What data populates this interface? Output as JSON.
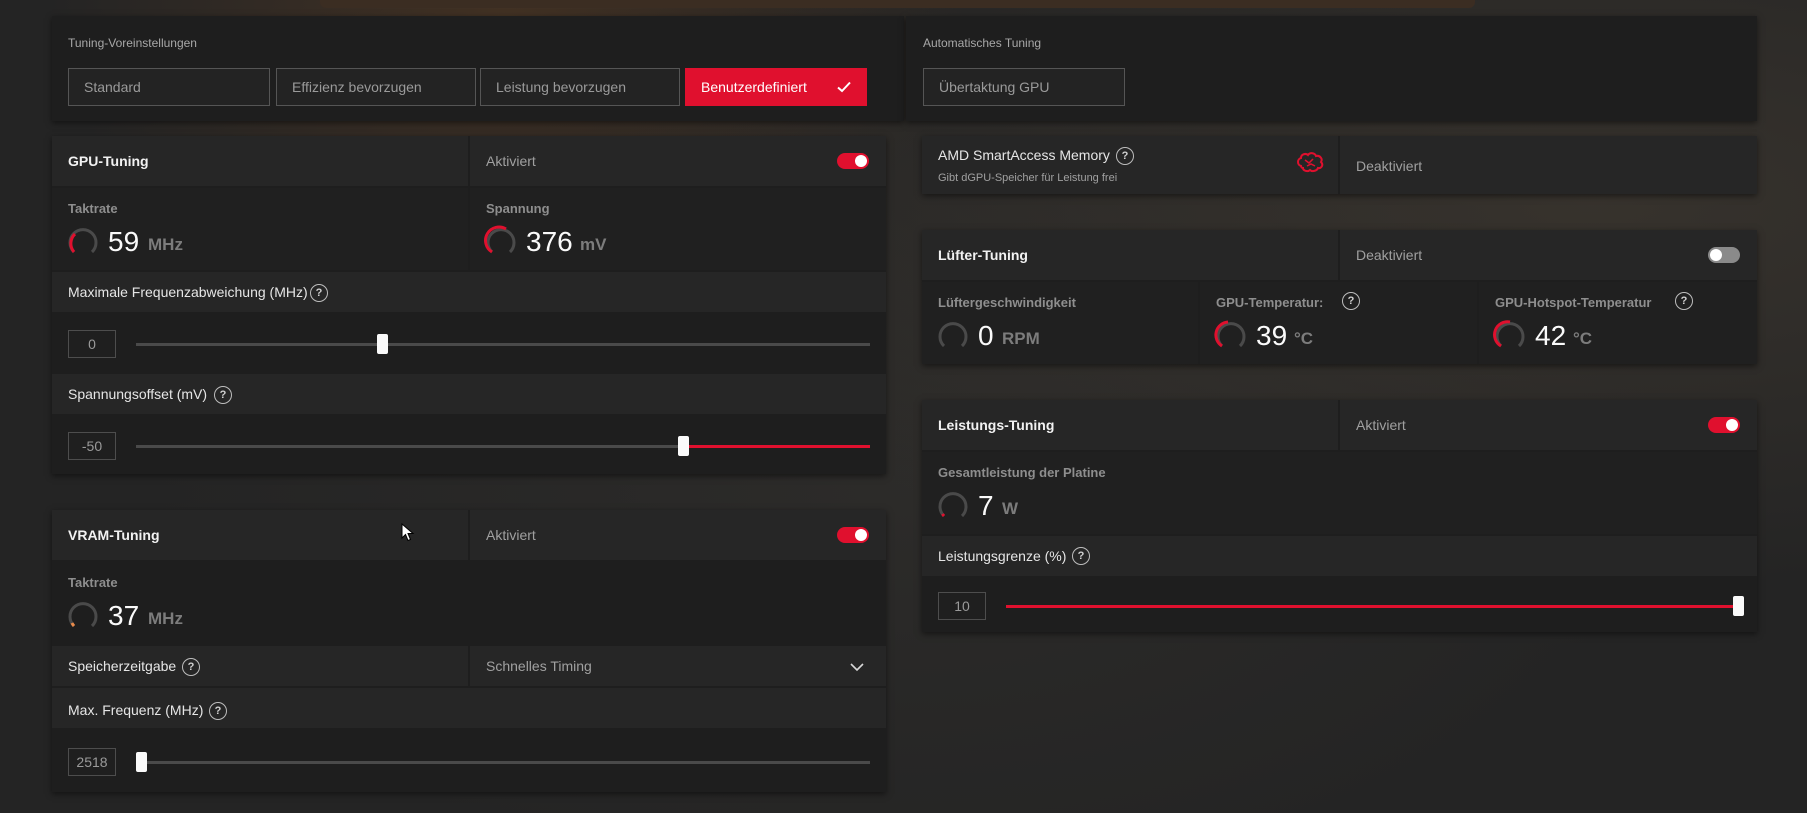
{
  "presets": {
    "section_label": "Tuning-Voreinstellungen",
    "buttons": [
      {
        "label": "Standard",
        "active": false
      },
      {
        "label": "Effizienz bevorzugen",
        "active": false
      },
      {
        "label": "Leistung bevorzugen",
        "active": false
      },
      {
        "label": "Benutzerdefiniert",
        "active": true
      }
    ]
  },
  "auto_tuning": {
    "section_label": "Automatisches Tuning",
    "button": "Übertaktung GPU"
  },
  "gpu_tuning": {
    "title": "GPU-Tuning",
    "state": "Aktiviert",
    "enabled": true,
    "clock": {
      "label": "Taktrate",
      "value": "59",
      "unit": "MHz"
    },
    "voltage": {
      "label": "Spannung",
      "value": "376",
      "unit": "mV"
    },
    "max_freq_offset": {
      "label": "Maximale Frequenzabweichung (MHz)",
      "value": "0",
      "position_fraction": 0.34
    },
    "voltage_offset": {
      "label": "Spannungsoffset (mV)",
      "value": "-50",
      "position_fraction": 0.75
    }
  },
  "vram_tuning": {
    "title": "VRAM-Tuning",
    "state": "Aktiviert",
    "enabled": true,
    "clock": {
      "label": "Taktrate",
      "value": "37",
      "unit": "MHz"
    },
    "memory_timing": {
      "label": "Speicherzeitgabe",
      "selected": "Schnelles Timing"
    },
    "max_freq": {
      "label": "Max. Frequenz (MHz)",
      "value": "2518",
      "position_fraction": 0.0
    }
  },
  "smart_access": {
    "title": "AMD SmartAccess Memory",
    "subtitle": "Gibt dGPU-Speicher für Leistung frei",
    "state": "Deaktiviert",
    "icon": "brain-icon"
  },
  "fan_tuning": {
    "title": "Lüfter-Tuning",
    "state": "Deaktiviert",
    "enabled": false,
    "fan_speed": {
      "label": "Lüftergeschwindigkeit",
      "value": "0",
      "unit": "RPM"
    },
    "gpu_temp": {
      "label": "GPU-Temperatur:",
      "value": "39",
      "unit": "°C"
    },
    "hotspot_temp": {
      "label": "GPU-Hotspot-Temperatur",
      "value": "42",
      "unit": "°C"
    }
  },
  "power_tuning": {
    "title": "Leistungs-Tuning",
    "state": "Aktiviert",
    "enabled": true,
    "board_power": {
      "label": "Gesamtleistung der Platine",
      "value": "7",
      "unit": "W"
    },
    "power_limit": {
      "label": "Leistungsgrenze (%)",
      "value": "10",
      "position_fraction": 1.0
    }
  },
  "colors": {
    "accent": "#e0102e",
    "panel": "#1e1e1e",
    "background": "#242424"
  }
}
